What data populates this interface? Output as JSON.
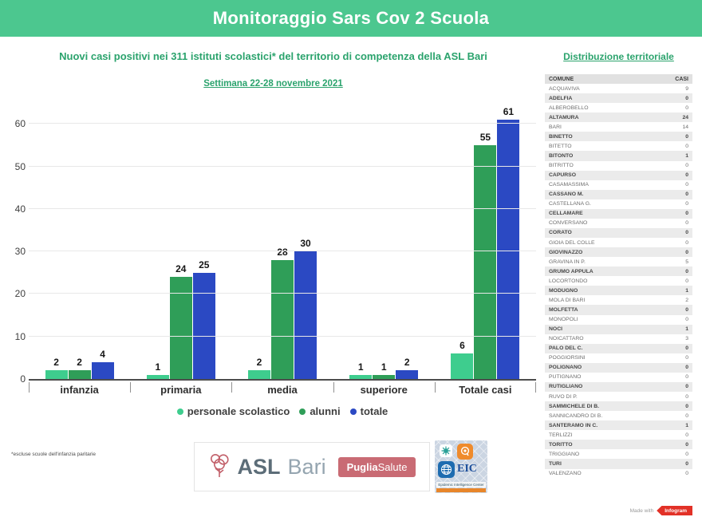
{
  "header": {
    "title": "Monitoraggio Sars Cov 2 Scuola"
  },
  "subtitle": "Nuovi casi positivi nei 311 istituti scolastici* del territorio di competenza della ASL Bari",
  "week_label": "Settimana 22-28 novembre 2021",
  "chart_data": {
    "type": "bar",
    "categories": [
      "infanzia",
      "primaria",
      "media",
      "superiore",
      "Totale casi"
    ],
    "series": [
      {
        "name": "personale scolastico",
        "color": "#3ecd8e",
        "values": [
          2,
          1,
          2,
          1,
          6
        ]
      },
      {
        "name": "alunni",
        "color": "#2f9e58",
        "values": [
          2,
          24,
          28,
          1,
          55
        ]
      },
      {
        "name": "totale",
        "color": "#2b49c3",
        "values": [
          4,
          25,
          30,
          2,
          61
        ]
      }
    ],
    "ylim": [
      0,
      60
    ],
    "yticks": [
      0,
      10,
      20,
      30,
      40,
      50,
      60
    ],
    "grid": true,
    "legend_position": "bottom",
    "title": "Nuovi casi positivi nei 311 istituti scolastici* del territorio di competenza della ASL Bari",
    "xlabel": "",
    "ylabel": ""
  },
  "table": {
    "title": "Distribuzione territoriale",
    "headers": [
      "COMUNE",
      "CASI"
    ],
    "rows": [
      [
        "ACQUAVIVA",
        "9"
      ],
      [
        "ADELFIA",
        "0"
      ],
      [
        "ALBEROBELLO",
        "0"
      ],
      [
        "ALTAMURA",
        "24"
      ],
      [
        "BARI",
        "14"
      ],
      [
        "BINETTO",
        "0"
      ],
      [
        "BITETTO",
        "0"
      ],
      [
        "BITONTO",
        "1"
      ],
      [
        "BITRITTO",
        "0"
      ],
      [
        "CAPURSO",
        "0"
      ],
      [
        "CASAMASSIMA",
        "0"
      ],
      [
        "CASSANO M.",
        "0"
      ],
      [
        "CASTELLANA  G.",
        "0"
      ],
      [
        "CELLAMARE",
        "0"
      ],
      [
        "CONVERSANO",
        "0"
      ],
      [
        "CORATO",
        "0"
      ],
      [
        "GIOIA DEL COLLE",
        "0"
      ],
      [
        "GIOVINAZZO",
        "0"
      ],
      [
        "GRAVINA IN P.",
        "5"
      ],
      [
        "GRUMO APPULA",
        "0"
      ],
      [
        "LOCORTONDO",
        "0"
      ],
      [
        "MODUGNO",
        "1"
      ],
      [
        "MOLA DI BARI",
        "2"
      ],
      [
        "MOLFETTA",
        "0"
      ],
      [
        "MONOPOLI",
        "0"
      ],
      [
        "NOCI",
        "1"
      ],
      [
        "NOICATTARO",
        "3"
      ],
      [
        "PALO DEL C.",
        "0"
      ],
      [
        "POGGIORSINI",
        "0"
      ],
      [
        "POLIGNANO",
        "0"
      ],
      [
        "PUTIGNANO",
        "0"
      ],
      [
        "RUTIGLIANO",
        "0"
      ],
      [
        "RUVO DI P.",
        "0"
      ],
      [
        "SAMMICHELE DI B.",
        "0"
      ],
      [
        "SANNICANDRO DI B.",
        "0"
      ],
      [
        "SANTERAMO IN C.",
        "1"
      ],
      [
        "TERLIZZI",
        "0"
      ],
      [
        "TORITTO",
        "0"
      ],
      [
        "TRIGGIANO",
        "0"
      ],
      [
        "TURI",
        "0"
      ],
      [
        "VALENZANO",
        "0"
      ]
    ]
  },
  "footnote": "*escluse scuole dell'infanzia paritarie",
  "logos": {
    "asl": {
      "name_bold": "ASL",
      "name_light": "Bari",
      "badge_bold": "Puglia",
      "badge_light": "Salute"
    },
    "eic": {
      "acronym": "EIC",
      "caption": "Epidemic Intelligence Center"
    }
  },
  "made_with": {
    "prefix": "Made with",
    "brand": "Infogram"
  },
  "colors": {
    "band_green": "#4cc78f",
    "accent_green": "#2ba36d",
    "infogram_red": "#e23127"
  }
}
